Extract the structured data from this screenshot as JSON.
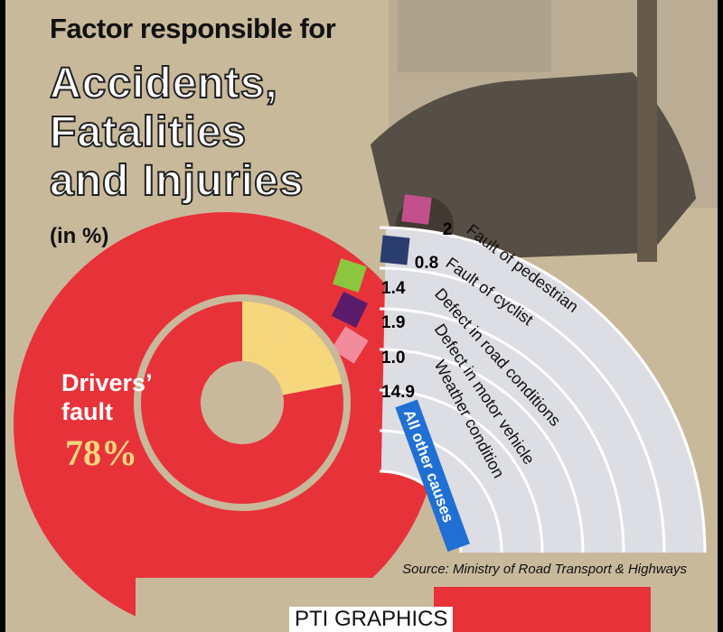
{
  "chart_data": {
    "type": "donut",
    "title": "Factor responsible for",
    "headline": [
      "Accidents,",
      "Fatalities",
      "and Injuries"
    ],
    "subtitle": "(in %)",
    "categories": [
      "Drivers’ fault",
      "Fault of pedestrian",
      "Fault of cyclist",
      "Defect in road conditions",
      "Defect in motor vehicle",
      "Weather condition",
      "All other causes"
    ],
    "values": [
      78,
      2,
      0.8,
      1.4,
      1.9,
      1.0,
      14.9
    ],
    "value_labels": [
      "78%",
      "2",
      "0.8",
      "1.4",
      "1.9",
      "1.0",
      "14.9"
    ],
    "colors": [
      "#e8323a",
      "#c2508c",
      "#2b3d6e",
      "#8cc63e",
      "#5b1b6b",
      "#f28c9c",
      "#1f6fd4"
    ],
    "other_color": "#f7d77c",
    "source": "Source: Ministry of Road Transport & Highways",
    "footer": "PTI GRAPHICS"
  }
}
